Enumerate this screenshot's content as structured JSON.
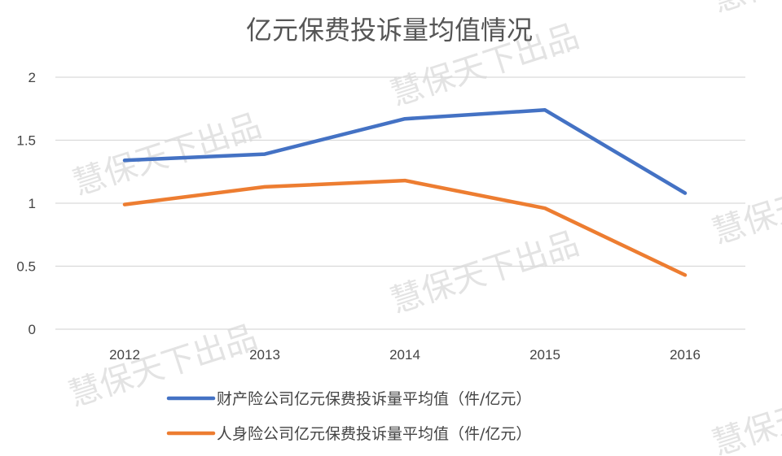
{
  "watermark_text": "慧保天下出品",
  "chart_data": {
    "type": "line",
    "title": "亿元保费投诉量均值情况",
    "xlabel": "",
    "ylabel": "",
    "categories": [
      "2012",
      "2013",
      "2014",
      "2015",
      "2016"
    ],
    "ylim": [
      0,
      2
    ],
    "yticks": [
      0,
      0.5,
      1,
      1.5,
      2
    ],
    "ytick_labels": [
      "0",
      "0.5",
      "1",
      "1.5",
      "2"
    ],
    "grid": true,
    "legend_position": "bottom",
    "series": [
      {
        "name": "财产险公司亿元保费投诉量平均值（件/亿元）",
        "color": "#4472c4",
        "values": [
          1.34,
          1.39,
          1.67,
          1.74,
          1.08
        ]
      },
      {
        "name": "人身险公司亿元保费投诉量平均值（件/亿元）",
        "color": "#ed7d31",
        "values": [
          0.99,
          1.13,
          1.18,
          0.96,
          0.43
        ]
      }
    ]
  }
}
